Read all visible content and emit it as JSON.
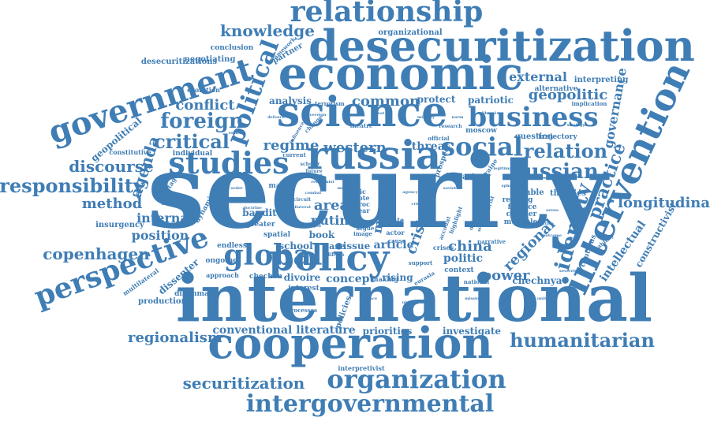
{
  "color": "#3f7db5",
  "words": [
    {
      "text": "security",
      "size": 130
    },
    {
      "text": "international",
      "size": 82
    },
    {
      "text": "cooperation",
      "size": 54
    },
    {
      "text": "desecuritization",
      "size": 54
    },
    {
      "text": "economic",
      "size": 58
    },
    {
      "text": "science",
      "size": 52
    },
    {
      "text": "russia",
      "size": 50
    },
    {
      "text": "intervention",
      "size": 46
    },
    {
      "text": "policy",
      "size": 46
    },
    {
      "text": "global",
      "size": 36
    },
    {
      "text": "relationship",
      "size": 36
    },
    {
      "text": "government",
      "size": 40
    },
    {
      "text": "perspective",
      "size": 36
    },
    {
      "text": "studies",
      "size": 38
    },
    {
      "text": "business",
      "size": 34
    },
    {
      "text": "organization",
      "size": 32
    },
    {
      "text": "intergovernmental",
      "size": 30
    },
    {
      "text": "humanitarian",
      "size": 24
    },
    {
      "text": "political",
      "size": 30
    },
    {
      "text": "social",
      "size": 32
    },
    {
      "text": "russian",
      "size": 26
    },
    {
      "text": "relation",
      "size": 24
    },
    {
      "text": "identity",
      "size": 26
    },
    {
      "text": "practice",
      "size": 22
    },
    {
      "text": "responsibility",
      "size": 24
    },
    {
      "text": "foreign",
      "size": 26
    },
    {
      "text": "critical",
      "size": 24
    },
    {
      "text": "agenda",
      "size": 20
    },
    {
      "text": "discourse",
      "size": 20
    },
    {
      "text": "conflict",
      "size": 18
    },
    {
      "text": "knowledge",
      "size": 20
    },
    {
      "text": "copenhagen",
      "size": 20
    },
    {
      "text": "securitization",
      "size": 20
    },
    {
      "text": "regionalism",
      "size": 18
    },
    {
      "text": "longitudinal",
      "size": 18
    },
    {
      "text": "method",
      "size": 18
    },
    {
      "text": "internal",
      "size": 16
    },
    {
      "text": "position",
      "size": 16
    },
    {
      "text": "western",
      "size": 18
    },
    {
      "text": "regime",
      "size": 18
    },
    {
      "text": "common",
      "size": 18
    },
    {
      "text": "china",
      "size": 18
    },
    {
      "text": "power",
      "size": 18
    },
    {
      "text": "regional",
      "size": 18
    },
    {
      "text": "crisis",
      "size": 18
    },
    {
      "text": "area",
      "size": 18
    },
    {
      "text": "putin",
      "size": 16
    },
    {
      "text": "concept",
      "size": 14
    },
    {
      "text": "conventional literature",
      "size": 14
    },
    {
      "text": "priorities",
      "size": 12
    },
    {
      "text": "investigate",
      "size": 12
    },
    {
      "text": "geopolitic",
      "size": 18
    },
    {
      "text": "external",
      "size": 16
    },
    {
      "text": "governance",
      "size": 16
    },
    {
      "text": "intellectual",
      "size": 14
    },
    {
      "text": "constructivist",
      "size": 12
    },
    {
      "text": "chechnya",
      "size": 12
    },
    {
      "text": "analysis",
      "size": 12
    },
    {
      "text": "protect",
      "size": 12
    },
    {
      "text": "patriotic",
      "size": 12
    },
    {
      "text": "threat",
      "size": 14
    },
    {
      "text": "more",
      "size": 16
    },
    {
      "text": "article",
      "size": 14
    },
    {
      "text": "politic",
      "size": 14
    },
    {
      "text": "school",
      "size": 12
    },
    {
      "text": "issue",
      "size": 12
    },
    {
      "text": "book",
      "size": 12
    },
    {
      "text": "case",
      "size": 11
    },
    {
      "text": "divoire",
      "size": 12
    },
    {
      "text": "rising",
      "size": 12
    },
    {
      "text": "bandit",
      "size": 12
    },
    {
      "text": "greater",
      "size": 9
    },
    {
      "text": "endless",
      "size": 9
    },
    {
      "text": "spatial",
      "size": 9
    },
    {
      "text": "chechen",
      "size": 9
    },
    {
      "text": "interest",
      "size": 9
    },
    {
      "text": "dilemma",
      "size": 9
    },
    {
      "text": "production",
      "size": 10
    },
    {
      "text": "dissenter",
      "size": 12
    },
    {
      "text": "multilateral",
      "size": 8
    },
    {
      "text": "insurgency",
      "size": 10
    },
    {
      "text": "individual",
      "size": 9
    },
    {
      "text": "geopolitical",
      "size": 12
    },
    {
      "text": "constitutive",
      "size": 8
    },
    {
      "text": "hostage",
      "size": 8
    },
    {
      "text": "dynamic",
      "size": 9
    },
    {
      "text": "ongoing",
      "size": 9
    },
    {
      "text": "approach",
      "size": 8
    },
    {
      "text": "evolution",
      "size": 8
    },
    {
      "text": "conclusion",
      "size": 9
    },
    {
      "text": "negotiating",
      "size": 10
    },
    {
      "text": "desecuritizations",
      "size": 10
    },
    {
      "text": "partner",
      "size": 10
    },
    {
      "text": "many",
      "size": 9
    },
    {
      "text": "organizational",
      "size": 10
    },
    {
      "text": "framework",
      "size": 7
    },
    {
      "text": "terrorism",
      "size": 7
    },
    {
      "text": "theatre",
      "size": 7
    },
    {
      "text": "research",
      "size": 6
    },
    {
      "text": "moscow",
      "size": 9
    },
    {
      "text": "official",
      "size": 7
    },
    {
      "text": "question",
      "size": 10
    },
    {
      "text": "trajectory",
      "size": 9
    },
    {
      "text": "interpreting",
      "size": 10
    },
    {
      "text": "alternative",
      "size": 9
    },
    {
      "text": "implication",
      "size": 7
    },
    {
      "text": "gamble",
      "size": 10
    },
    {
      "text": "theories",
      "size": 10
    },
    {
      "text": "libya",
      "size": 10
    },
    {
      "text": "study",
      "size": 10
    },
    {
      "text": "prospect",
      "size": 9
    },
    {
      "text": "ukraine",
      "size": 8
    },
    {
      "text": "reading",
      "size": 9
    },
    {
      "text": "finance",
      "size": 9
    },
    {
      "text": "chapter",
      "size": 9
    },
    {
      "text": "multiple",
      "size": 9
    },
    {
      "text": "cautious",
      "size": 9
    },
    {
      "text": "stability",
      "size": 7
    },
    {
      "text": "narrative",
      "size": 7
    },
    {
      "text": "context",
      "size": 9
    },
    {
      "text": "national",
      "size": 7
    },
    {
      "text": "eurasia",
      "size": 7
    },
    {
      "text": "making",
      "size": 8
    },
    {
      "text": "support",
      "size": 7
    },
    {
      "text": "crises",
      "size": 8
    },
    {
      "text": "account",
      "size": 7
    },
    {
      "text": "highlight",
      "size": 7
    },
    {
      "text": "debate",
      "size": 7
    },
    {
      "text": "terrorist",
      "size": 7
    },
    {
      "text": "solidify",
      "size": 6
    },
    {
      "text": "interpretivist",
      "size": 8
    },
    {
      "text": "processes",
      "size": 7
    },
    {
      "text": "policies",
      "size": 10
    },
    {
      "text": "state",
      "size": 8
    },
    {
      "text": "actor",
      "size": 8
    },
    {
      "text": "cause",
      "size": 7
    },
    {
      "text": "year",
      "size": 8
    },
    {
      "text": "level",
      "size": 7
    },
    {
      "text": "argue",
      "size": 7
    },
    {
      "text": "image",
      "size": 7
    },
    {
      "text": "bric",
      "size": 8
    },
    {
      "text": "cote",
      "size": 8
    },
    {
      "text": "proc",
      "size": 8
    },
    {
      "text": "current",
      "size": 7
    },
    {
      "text": "change",
      "size": 7
    },
    {
      "text": "influence",
      "size": 6
    },
    {
      "text": "scholar",
      "size": 6
    },
    {
      "text": "future",
      "size": 6
    },
    {
      "text": "recent",
      "size": 6
    },
    {
      "text": "circuit",
      "size": 6
    },
    {
      "text": "revisionist",
      "size": 5
    },
    {
      "text": "armed",
      "size": 5
    },
    {
      "text": "libyan",
      "size": 6
    },
    {
      "text": "combat",
      "size": 5
    },
    {
      "text": "unilateral",
      "size": 5
    },
    {
      "text": "agency",
      "size": 5
    },
    {
      "text": "crimea",
      "size": 5
    },
    {
      "text": "mass",
      "size": 5
    },
    {
      "text": "media",
      "size": 5
    },
    {
      "text": "soviet",
      "size": 5
    },
    {
      "text": "sphere",
      "size": 5
    },
    {
      "text": "arena",
      "size": 5
    },
    {
      "text": "sanction",
      "size": 5
    },
    {
      "text": "sovereignty",
      "size": 5
    },
    {
      "text": "uniting",
      "size": 5
    },
    {
      "text": "peace",
      "size": 5
    },
    {
      "text": "mission",
      "size": 5
    },
    {
      "text": "united",
      "size": 5
    },
    {
      "text": "nations",
      "size": 5
    },
    {
      "text": "order",
      "size": 5
    },
    {
      "text": "legitimacy",
      "size": 5
    },
    {
      "text": "norm",
      "size": 5
    },
    {
      "text": "sovereign",
      "size": 5
    },
    {
      "text": "military",
      "size": 5
    },
    {
      "text": "defence",
      "size": 5
    },
    {
      "text": "great",
      "size": 5
    },
    {
      "text": "realism",
      "size": 5
    },
    {
      "text": "liberal",
      "size": 5
    },
    {
      "text": "strategy",
      "size": 5
    },
    {
      "text": "doctrine",
      "size": 5
    },
    {
      "text": "outcome",
      "size": 5
    }
  ]
}
